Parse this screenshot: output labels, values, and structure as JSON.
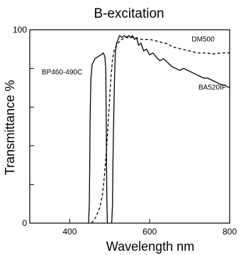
{
  "chart_data": {
    "type": "line",
    "title": "B-excitation",
    "xlabel": "Wavelength nm",
    "ylabel": "Transmittance %",
    "xlim": [
      300,
      800
    ],
    "ylim": [
      0,
      100
    ],
    "x_ticks": [
      400,
      600,
      800
    ],
    "x_tick_labels": [
      "400",
      "600",
      "800"
    ],
    "y_ticks": [
      0,
      100
    ],
    "y_tick_labels": [
      "0",
      "100"
    ],
    "y_minor_ticks": [
      20,
      40,
      60,
      80
    ],
    "grid": false,
    "legend": "none",
    "series": [
      {
        "name": "BP460-490C",
        "style": "solid",
        "points": [
          [
            447,
            0
          ],
          [
            449,
            10
          ],
          [
            450,
            30
          ],
          [
            451,
            55
          ],
          [
            453,
            75
          ],
          [
            456,
            82
          ],
          [
            463,
            85
          ],
          [
            470,
            86
          ],
          [
            478,
            87
          ],
          [
            484,
            88
          ],
          [
            488,
            86
          ],
          [
            490,
            80
          ],
          [
            491,
            60
          ],
          [
            492,
            30
          ],
          [
            493,
            10
          ],
          [
            494,
            0
          ]
        ]
      },
      {
        "name": "DM500",
        "style": "dashed",
        "points": [
          [
            455,
            0
          ],
          [
            465,
            3
          ],
          [
            475,
            8
          ],
          [
            482,
            15
          ],
          [
            487,
            25
          ],
          [
            492,
            38
          ],
          [
            497,
            55
          ],
          [
            502,
            72
          ],
          [
            507,
            85
          ],
          [
            512,
            90
          ],
          [
            520,
            93
          ],
          [
            530,
            95
          ],
          [
            540,
            96
          ],
          [
            560,
            96
          ],
          [
            580,
            95
          ],
          [
            600,
            95
          ],
          [
            620,
            94
          ],
          [
            640,
            93
          ],
          [
            660,
            91
          ],
          [
            680,
            90
          ],
          [
            700,
            89
          ],
          [
            720,
            88
          ],
          [
            740,
            88
          ],
          [
            760,
            87.5
          ],
          [
            780,
            88
          ],
          [
            800,
            88
          ]
        ]
      },
      {
        "name": "BA520IF",
        "style": "solid",
        "points": [
          [
            505,
            0
          ],
          [
            507,
            10
          ],
          [
            508,
            30
          ],
          [
            510,
            55
          ],
          [
            512,
            75
          ],
          [
            514,
            88
          ],
          [
            517,
            93
          ],
          [
            521,
            95
          ],
          [
            525,
            97
          ],
          [
            530,
            96
          ],
          [
            537,
            97
          ],
          [
            542,
            96
          ],
          [
            548,
            97
          ],
          [
            552,
            96
          ],
          [
            557,
            97
          ],
          [
            562,
            95
          ],
          [
            567,
            96
          ],
          [
            572,
            92
          ],
          [
            578,
            93
          ],
          [
            585,
            89
          ],
          [
            592,
            90
          ],
          [
            600,
            87
          ],
          [
            608,
            88
          ],
          [
            616,
            86
          ],
          [
            625,
            84
          ],
          [
            635,
            85
          ],
          [
            645,
            83
          ],
          [
            655,
            81
          ],
          [
            665,
            80
          ],
          [
            675,
            79
          ],
          [
            685,
            80
          ],
          [
            695,
            79
          ],
          [
            705,
            78
          ],
          [
            715,
            77
          ],
          [
            725,
            76
          ],
          [
            735,
            75
          ],
          [
            745,
            75
          ],
          [
            755,
            74
          ],
          [
            765,
            73
          ],
          [
            775,
            72
          ],
          [
            790,
            71
          ],
          [
            800,
            70
          ]
        ]
      }
    ],
    "annotations": [
      {
        "text": "BP460-490C",
        "x": 330,
        "y": 77
      },
      {
        "text": "DM500",
        "x": 705,
        "y": 94
      },
      {
        "text": "BA520IF",
        "x": 722,
        "y": 69
      }
    ]
  }
}
